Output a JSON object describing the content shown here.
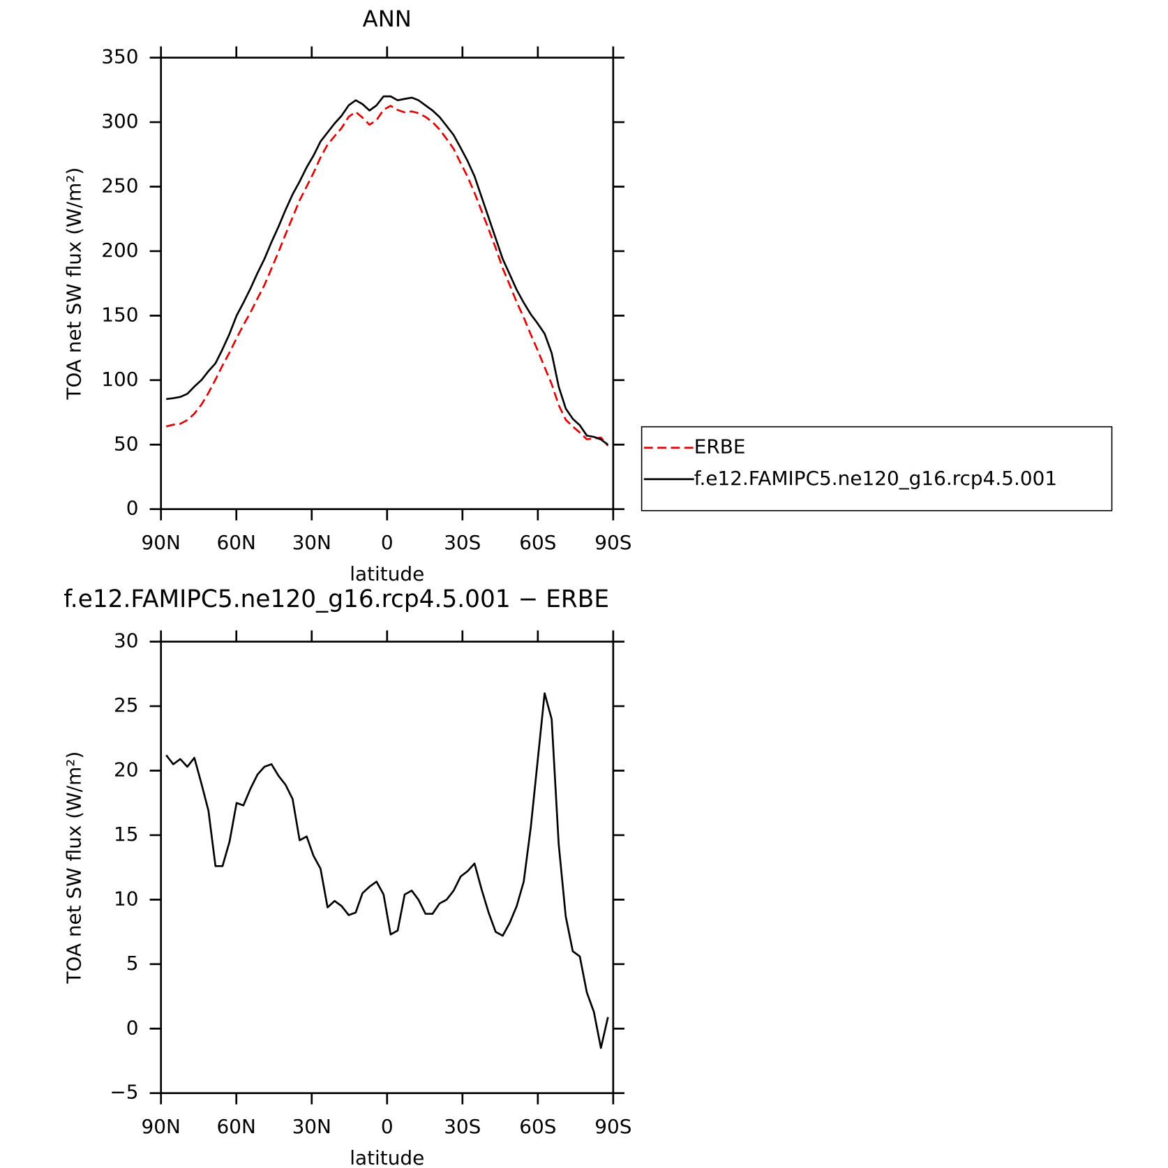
{
  "chart_data": [
    {
      "type": "line",
      "title": "ANN",
      "xlabel": "latitude",
      "ylabel": "TOA net SW flux (W/m²)",
      "x": [
        87.9,
        85.1,
        82.3,
        79.5,
        76.7,
        73.9,
        71.1,
        68.3,
        65.5,
        62.7,
        59.9,
        57.2,
        54.4,
        51.6,
        48.8,
        46.0,
        43.2,
        40.4,
        37.6,
        34.8,
        32.0,
        29.3,
        26.5,
        23.7,
        20.9,
        18.1,
        15.3,
        12.5,
        9.8,
        7.0,
        4.2,
        1.4,
        -1.4,
        -4.2,
        -7.0,
        -9.8,
        -12.5,
        -15.3,
        -18.1,
        -20.9,
        -23.7,
        -26.5,
        -29.3,
        -32.0,
        -34.8,
        -37.6,
        -40.4,
        -43.2,
        -46.0,
        -48.8,
        -51.6,
        -54.4,
        -57.2,
        -59.9,
        -62.7,
        -65.5,
        -68.3,
        -71.1,
        -73.9,
        -76.7,
        -79.5,
        -82.3,
        -85.1,
        -87.9
      ],
      "series": [
        {
          "name": "ERBE",
          "color": "#e00000",
          "dashed": true,
          "values": [
            64.1,
            65.5,
            66.1,
            69.1,
            74,
            81,
            90.1,
            100.4,
            111.4,
            121.5,
            132.5,
            142.7,
            152.4,
            163.3,
            173.7,
            186.5,
            199.4,
            213.1,
            226.2,
            239.4,
            250.1,
            260.6,
            272.6,
            282.6,
            289.1,
            295.5,
            304.2,
            308,
            303.5,
            298,
            301.6,
            309.6,
            312.7,
            309.4,
            307.6,
            308.3,
            307,
            304.1,
            300.1,
            294.3,
            287,
            279.3,
            268.2,
            257.8,
            245.2,
            231.2,
            217,
            202.5,
            186.8,
            173.8,
            160.5,
            148.6,
            135.4,
            123.3,
            110,
            97,
            80.7,
            69.3,
            64,
            59.4,
            54.2,
            54.7,
            55.5,
            49.1
          ]
        },
        {
          "name": "f.e12.FAMIPC5.ne120_g16.rcp4.5.001",
          "color": "#000000",
          "dashed": false,
          "values": [
            85.3,
            86,
            87,
            89.4,
            95,
            100,
            107,
            113,
            124,
            136,
            150,
            160,
            171,
            183,
            194,
            207,
            219,
            232,
            244,
            254,
            265,
            274,
            285,
            292,
            299,
            305,
            313,
            317,
            314,
            309,
            313,
            320,
            320,
            317,
            318,
            319,
            317,
            313,
            309,
            304,
            297,
            290,
            280,
            270,
            258,
            242,
            226,
            210,
            194,
            182,
            170,
            160,
            151,
            144,
            136,
            121,
            95,
            78,
            70,
            65,
            57,
            56,
            54,
            50
          ]
        }
      ],
      "xlim": [
        90,
        -90
      ],
      "xticks": [
        {
          "value": 90,
          "label": "90N"
        },
        {
          "value": 60,
          "label": "60N"
        },
        {
          "value": 30,
          "label": "30N"
        },
        0,
        {
          "value": -30,
          "label": "30S"
        },
        {
          "value": -60,
          "label": "60S"
        },
        {
          "value": -90,
          "label": "90S"
        }
      ],
      "ylim": [
        0,
        350
      ],
      "yticks": [
        0,
        50,
        100,
        150,
        200,
        250,
        300,
        350
      ],
      "legend": "right"
    },
    {
      "type": "line",
      "title": "f.e12.FAMIPC5.ne120_g16.rcp4.5.001 − ERBE",
      "xlabel": "latitude",
      "ylabel": "TOA net SW flux (W/m²)",
      "x": [
        87.9,
        85.1,
        82.3,
        79.5,
        76.7,
        73.9,
        71.1,
        68.3,
        65.5,
        62.7,
        59.9,
        57.2,
        54.4,
        51.6,
        48.8,
        46.0,
        43.2,
        40.4,
        37.6,
        34.8,
        32.0,
        29.3,
        26.5,
        23.7,
        20.9,
        18.1,
        15.3,
        12.5,
        9.8,
        7.0,
        4.2,
        1.4,
        -1.4,
        -4.2,
        -7.0,
        -9.8,
        -12.5,
        -15.3,
        -18.1,
        -20.9,
        -23.7,
        -26.5,
        -29.3,
        -32.0,
        -34.8,
        -37.6,
        -40.4,
        -43.2,
        -46.0,
        -48.8,
        -51.6,
        -54.4,
        -57.2,
        -59.9,
        -62.7,
        -65.5,
        -68.3,
        -71.1,
        -73.9,
        -76.7,
        -79.5,
        -82.3,
        -85.1,
        -87.9
      ],
      "color": "#000000",
      "values": [
        21.2,
        20.5,
        20.9,
        20.3,
        21.0,
        19.0,
        16.9,
        12.6,
        12.6,
        14.5,
        17.5,
        17.3,
        18.6,
        19.7,
        20.3,
        20.5,
        19.6,
        18.9,
        17.8,
        14.6,
        14.9,
        13.4,
        12.4,
        9.4,
        9.9,
        9.5,
        8.8,
        9.0,
        10.5,
        11.0,
        11.4,
        10.4,
        7.3,
        7.6,
        10.4,
        10.7,
        10.0,
        8.9,
        8.9,
        9.7,
        10.0,
        10.7,
        11.8,
        12.2,
        12.8,
        10.8,
        9.0,
        7.5,
        7.2,
        8.2,
        9.5,
        11.4,
        15.6,
        20.7,
        26.0,
        24.0,
        14.3,
        8.7,
        6.0,
        5.6,
        2.8,
        1.3,
        -1.5,
        0.9
      ],
      "xlim": [
        90,
        -90
      ],
      "xticks": [
        {
          "value": 90,
          "label": "90N"
        },
        {
          "value": 60,
          "label": "60N"
        },
        {
          "value": 30,
          "label": "30N"
        },
        0,
        {
          "value": -30,
          "label": "30S"
        },
        {
          "value": -60,
          "label": "60S"
        },
        {
          "value": -90,
          "label": "90S"
        }
      ],
      "ylim": [
        -5,
        30
      ],
      "yticks": [
        {
          "value": -5,
          "label": "−5"
        },
        0,
        5,
        10,
        15,
        20,
        25,
        30
      ]
    }
  ]
}
